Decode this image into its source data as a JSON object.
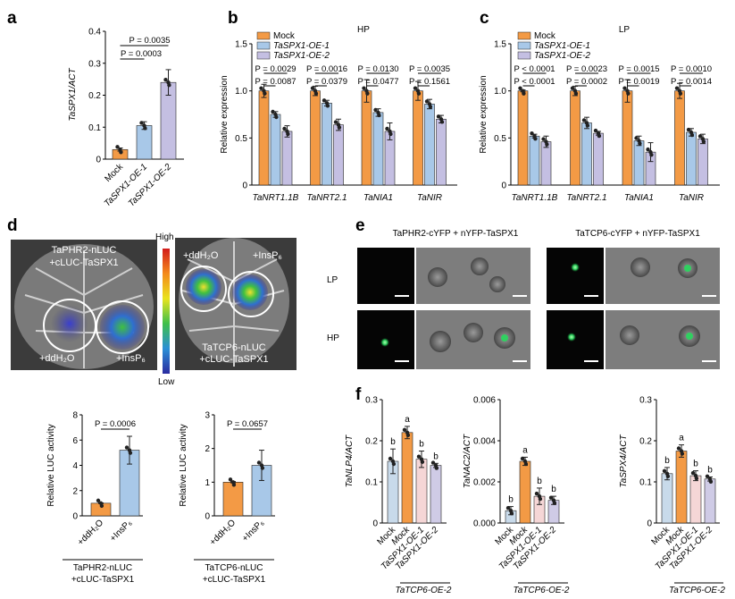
{
  "panels": {
    "a": "a",
    "b": "b",
    "c": "c",
    "d": "d",
    "e": "e",
    "f": "f"
  },
  "colors": {
    "mock_orange": "#f39a45",
    "oe1_blue": "#a8c8e8",
    "oe2_purple": "#c4bfe2",
    "f_blue": "#c8daea",
    "f_pink": "#f5d6d6",
    "f_purple": "#cfcbe6",
    "leaf_bg": "#3c3c3c"
  },
  "legend": {
    "mock": "Mock",
    "oe1": "TaSPX1-OE-1",
    "oe2": "TaSPX1-OE-2"
  },
  "chart_data": [
    {
      "id": "a",
      "type": "bar",
      "title": "",
      "ylabel": "TaSPX1/ACT",
      "ylim": [
        0,
        0.4
      ],
      "yticks": [
        "0",
        "0.1",
        "0.2",
        "0.3",
        "0.4"
      ],
      "categories": [
        "Mock",
        "TaSPX1-OE-1",
        "TaSPX1-OE-2"
      ],
      "values": [
        0.03,
        0.105,
        0.24
      ],
      "errors": [
        0.005,
        0.012,
        0.04
      ],
      "colors": [
        "#f39a45",
        "#a8c8e8",
        "#c4bfe2"
      ],
      "annotations": [
        "P = 0.0035",
        "P = 0.0003"
      ]
    },
    {
      "id": "b",
      "type": "bar",
      "title": "HP",
      "ylabel": "Relative expression",
      "ylim": [
        0,
        1.5
      ],
      "yticks": [
        "0",
        "0.5",
        "1.0",
        "1.5"
      ],
      "categories": [
        "TaNRT1.1B",
        "TaNRT2.1",
        "TaNIA1",
        "TaNIR"
      ],
      "series": [
        {
          "name": "Mock",
          "values": [
            1.0,
            1.0,
            1.0,
            1.0
          ],
          "errors": [
            0.07,
            0.05,
            0.12,
            0.1
          ]
        },
        {
          "name": "TaSPX1-OE-1",
          "values": [
            0.75,
            0.87,
            0.77,
            0.86
          ],
          "errors": [
            0.03,
            0.03,
            0.04,
            0.05
          ]
        },
        {
          "name": "TaSPX1-OE-2",
          "values": [
            0.57,
            0.64,
            0.57,
            0.7
          ],
          "errors": [
            0.06,
            0.06,
            0.09,
            0.04
          ]
        }
      ],
      "pvalues_top": [
        "P = 0.0029",
        "P = 0.0016",
        "P = 0.0130",
        "P = 0.0035"
      ],
      "pvalues_bottom": [
        "P = 0.0087",
        "P = 0.0379",
        "P = 0.0477",
        "P = 0.1561"
      ]
    },
    {
      "id": "c",
      "type": "bar",
      "title": "LP",
      "ylabel": "Relative expression",
      "ylim": [
        0,
        1.5
      ],
      "yticks": [
        "0",
        "0.5",
        "1.0",
        "1.5"
      ],
      "categories": [
        "TaNRT1.1B",
        "TaNRT2.1",
        "TaNIA1",
        "TaNIR"
      ],
      "series": [
        {
          "name": "Mock",
          "values": [
            1.0,
            1.0,
            1.0,
            1.0
          ],
          "errors": [
            0.01,
            0.05,
            0.12,
            0.08
          ]
        },
        {
          "name": "TaSPX1-OE-1",
          "values": [
            0.52,
            0.66,
            0.47,
            0.56
          ],
          "errors": [
            0.02,
            0.06,
            0.05,
            0.04
          ]
        },
        {
          "name": "TaSPX1-OE-2",
          "values": [
            0.46,
            0.55,
            0.35,
            0.49
          ],
          "errors": [
            0.06,
            0.02,
            0.1,
            0.05
          ]
        }
      ],
      "pvalues_top": [
        "P < 0.0001",
        "P = 0.0023",
        "P = 0.0015",
        "P = 0.0010"
      ],
      "pvalues_bottom": [
        "P < 0.0001",
        "P = 0.0002",
        "P = 0.0019",
        "P = 0.0014"
      ]
    },
    {
      "id": "d1",
      "type": "bar",
      "title": "",
      "ylabel": "Relative LUC activity",
      "ylim": [
        0,
        8
      ],
      "yticks": [
        "0",
        "2",
        "4",
        "6",
        "8"
      ],
      "categories": [
        "+ddH₂O",
        "+InsP₆"
      ],
      "values": [
        1.0,
        5.2
      ],
      "errors": [
        0.03,
        1.1
      ],
      "colors": [
        "#f39a45",
        "#a8c8e8"
      ],
      "annotations": [
        "P = 0.0006"
      ],
      "construct": [
        "TaPHR2-nLUC",
        "+cLUC-TaSPX1"
      ]
    },
    {
      "id": "d2",
      "type": "bar",
      "title": "",
      "ylabel": "Relative LUC activity",
      "ylim": [
        0,
        3
      ],
      "yticks": [
        "0",
        "1",
        "2",
        "3"
      ],
      "categories": [
        "+ddH₂O",
        "+InsP₆"
      ],
      "values": [
        1.0,
        1.5
      ],
      "errors": [
        0.02,
        0.45
      ],
      "colors": [
        "#f39a45",
        "#a8c8e8"
      ],
      "annotations": [
        "P = 0.0657"
      ],
      "construct": [
        "TaTCP6-nLUC",
        "+cLUC-TaSPX1"
      ]
    },
    {
      "id": "f1",
      "type": "bar",
      "title": "",
      "ylabel": "TaNLP4/ACT",
      "ylim": [
        0,
        0.3
      ],
      "yticks": [
        "0",
        "0.1",
        "0.2",
        "0.3"
      ],
      "categories": [
        "Mock",
        "Mock",
        "TaSPX1-OE-1",
        "TaSPX1-OE-2"
      ],
      "values": [
        0.15,
        0.22,
        0.155,
        0.14
      ],
      "errors": [
        0.03,
        0.015,
        0.02,
        0.005
      ],
      "colors": [
        "#c8daea",
        "#f39a45",
        "#f5d6d6",
        "#cfcbe6"
      ],
      "letters": [
        "b",
        "a",
        "b",
        "b"
      ],
      "group_label": "TaTCP6-OE-2"
    },
    {
      "id": "f2",
      "type": "bar",
      "title": "",
      "ylabel": "TaNAC2/ACT",
      "ylim": [
        0,
        0.006
      ],
      "yticks": [
        "0.000",
        "0.002",
        "0.004",
        "0.006"
      ],
      "categories": [
        "Mock",
        "Mock",
        "TaSPX1-OE-1",
        "TaSPX1-OE-2"
      ],
      "values": [
        0.0006,
        0.003,
        0.0013,
        0.0011
      ],
      "errors": [
        0.0002,
        0.0002,
        0.0004,
        0.0002
      ],
      "colors": [
        "#c8daea",
        "#f39a45",
        "#f5d6d6",
        "#cfcbe6"
      ],
      "letters": [
        "b",
        "a",
        "b",
        "b"
      ],
      "group_label": "TaTCP6-OE-2"
    },
    {
      "id": "f3",
      "type": "bar",
      "title": "",
      "ylabel": "TaSPX4/ACT",
      "ylim": [
        0,
        0.3
      ],
      "yticks": [
        "0",
        "0.1",
        "0.2",
        "0.3"
      ],
      "categories": [
        "Mock",
        "Mock",
        "TaSPX1-OE-1",
        "TaSPX1-OE-2"
      ],
      "values": [
        0.12,
        0.175,
        0.115,
        0.107
      ],
      "errors": [
        0.015,
        0.015,
        0.012,
        0.005
      ],
      "colors": [
        "#c8daea",
        "#f39a45",
        "#f5d6d6",
        "#cfcbe6"
      ],
      "letters": [
        "b",
        "a",
        "b",
        "b"
      ],
      "group_label": "TaTCP6-OE-2"
    }
  ],
  "panel_d_images": {
    "left_label_1": "TaPHR2-nLUC",
    "left_label_2": "+cLUC-TaSPX1",
    "left_water": "+ddH₂O",
    "left_insp": "+InsP₆",
    "right_water": "+ddH₂O",
    "right_insp": "+InsP₆",
    "right_label_1": "TaTCP6-nLUC",
    "right_label_2": "+cLUC-TaSPX1",
    "scale_high": "High",
    "scale_low": "Low"
  },
  "panel_e_images": {
    "col1": "TaPHR2-cYFP + nYFP-TaSPX1",
    "col2": "TaTCP6-cYFP + nYFP-TaSPX1",
    "row1": "LP",
    "row2": "HP"
  }
}
